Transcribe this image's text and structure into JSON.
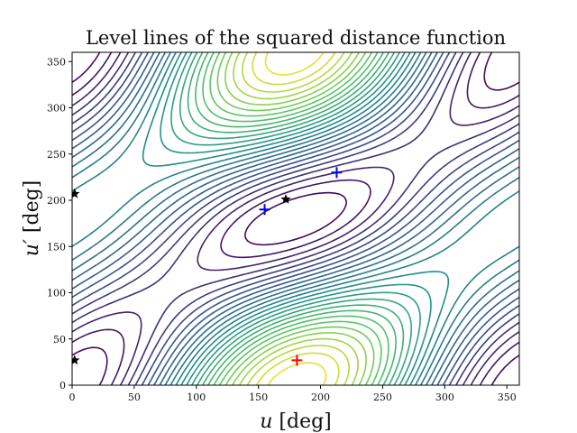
{
  "chart_data": {
    "type": "contour",
    "title": "Level lines of the squared distance function",
    "xlabel": {
      "symbol": "u",
      "unit": " [deg]"
    },
    "ylabel": {
      "symbol": "u′",
      "unit": " [deg]"
    },
    "xlim": [
      0,
      360
    ],
    "ylim": [
      0,
      360
    ],
    "xticks": [
      0,
      50,
      100,
      150,
      200,
      250,
      300,
      350
    ],
    "yticks": [
      0,
      50,
      100,
      150,
      200,
      250,
      300,
      350
    ],
    "grid": false,
    "colormap": [
      "#440154",
      "#3b528b",
      "#21918c",
      "#5ec962",
      "#fde725"
    ],
    "markers": [
      {
        "name": "blue-cross-1",
        "shape": "plus",
        "color": "#0000ff",
        "x": 155,
        "y": 190
      },
      {
        "name": "blue-cross-2",
        "shape": "plus",
        "color": "#0000ff",
        "x": 213,
        "y": 230
      },
      {
        "name": "red-cross",
        "shape": "plus",
        "color": "#ff0000",
        "x": 181,
        "y": 27
      },
      {
        "name": "black-star-1",
        "shape": "star",
        "color": "#000000",
        "x": 172,
        "y": 201
      },
      {
        "name": "black-star-2",
        "shape": "star",
        "color": "#000000",
        "x": 2,
        "y": 207
      },
      {
        "name": "black-star-3",
        "shape": "star",
        "color": "#000000",
        "x": 2,
        "y": 27
      }
    ]
  }
}
